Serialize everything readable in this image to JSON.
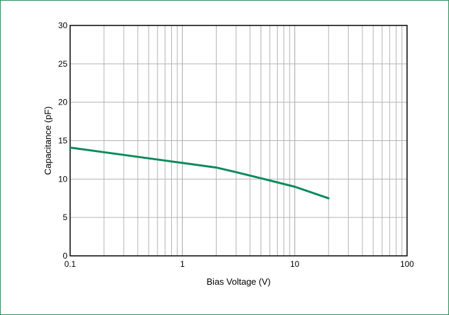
{
  "chart_data": {
    "type": "line",
    "title": "",
    "xlabel": "Bias Voltage (V)",
    "ylabel": "Capacitance (pF)",
    "x_scale": "log",
    "xlim": [
      0.1,
      100
    ],
    "ylim": [
      0,
      30
    ],
    "x_ticks": [
      "0.1",
      "1",
      "10",
      "100"
    ],
    "y_ticks": [
      "0",
      "5",
      "10",
      "15",
      "20",
      "25",
      "30"
    ],
    "grid": true,
    "legend": "none",
    "series": [
      {
        "color": "#0a8a5a",
        "x": [
          0.1,
          0.2,
          0.5,
          1,
          2,
          3,
          5,
          10,
          20
        ],
        "y": [
          14.1,
          13.5,
          12.7,
          12.1,
          11.5,
          10.9,
          10.1,
          9.0,
          7.5
        ]
      }
    ]
  },
  "colors": {
    "frame": "#2e8b57",
    "grid": "#b3b3b3",
    "axis": "#000000",
    "series": "#0a8a5a"
  }
}
